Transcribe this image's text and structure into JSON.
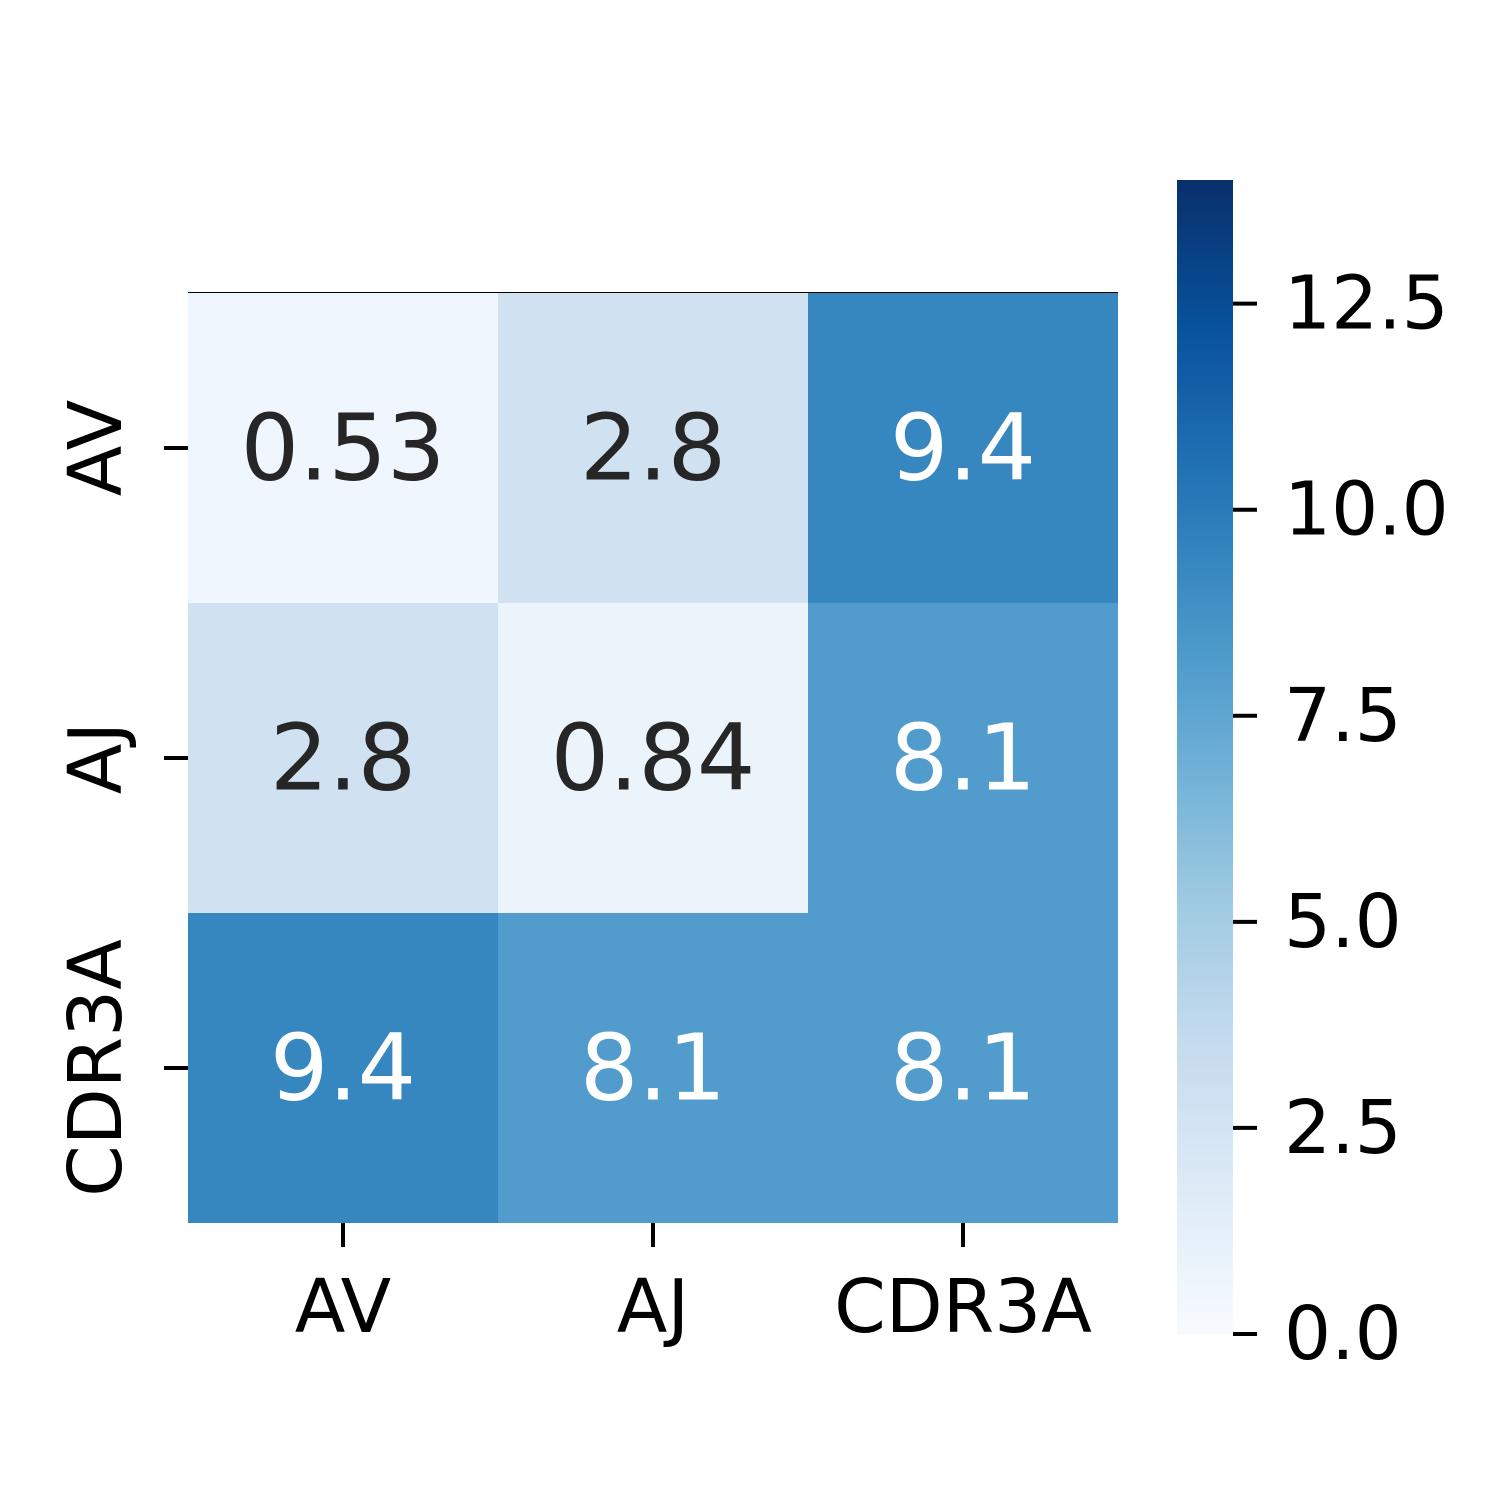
{
  "chart_data": {
    "type": "heatmap",
    "rows": [
      "AV",
      "AJ",
      "CDR3A"
    ],
    "columns": [
      "AV",
      "AJ",
      "CDR3A"
    ],
    "values": [
      [
        0.53,
        2.8,
        9.4
      ],
      [
        2.8,
        0.84,
        8.1
      ],
      [
        9.4,
        8.1,
        8.1
      ]
    ],
    "cell_labels": [
      [
        "0.53",
        "2.8",
        "9.4"
      ],
      [
        "2.8",
        "0.84",
        "8.1"
      ],
      [
        "9.4",
        "8.1",
        "8.1"
      ]
    ],
    "colormap": "Blues",
    "color_range": [
      0,
      14
    ],
    "colorbar": {
      "ticks": [
        0.0,
        2.5,
        5.0,
        7.5,
        10.0,
        12.5
      ],
      "tick_labels": [
        "0.0",
        "2.5",
        "5.0",
        "7.5",
        "10.0",
        "12.5"
      ]
    },
    "title": "",
    "xlabel": "",
    "ylabel": ""
  }
}
